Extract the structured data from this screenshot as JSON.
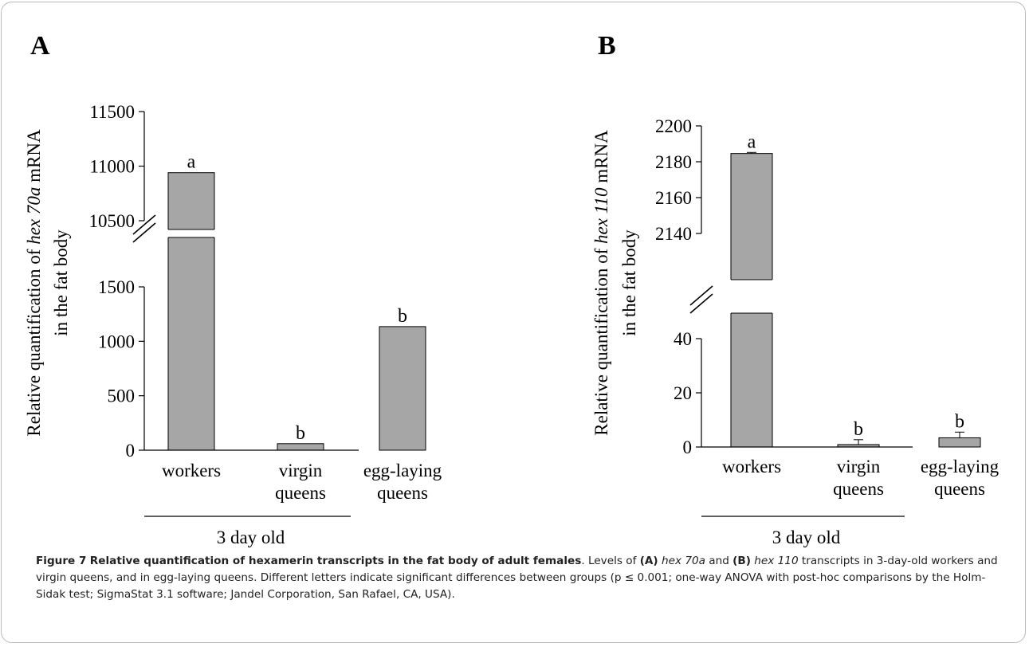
{
  "chart_data": [
    {
      "type": "bar",
      "panel_label": "A",
      "categories": [
        [
          "workers"
        ],
        [
          "virgin",
          "queens"
        ],
        [
          "egg-laying",
          "queens"
        ]
      ],
      "values": [
        10940,
        60,
        1135
      ],
      "errors": [
        0,
        0,
        0
      ],
      "letters": [
        "a",
        "b",
        "b"
      ],
      "group_label": "3 day old",
      "ylabel_line1": {
        "pre": "Relative quantification of ",
        "italic": "hex 70a",
        "post": " mRNA"
      },
      "ylabel_line2": "in the fat body",
      "axis_break": true,
      "lower_segment": {
        "ylim": [
          0,
          1500
        ],
        "ticks": [
          "0",
          "500",
          "1000",
          "1500"
        ]
      },
      "upper_segment": {
        "ylim": [
          10500,
          11500
        ],
        "ticks": [
          "10500",
          "11000",
          "11500"
        ]
      },
      "grid": false,
      "bar_color": "#a6a6a6"
    },
    {
      "type": "bar",
      "panel_label": "B",
      "categories": [
        [
          "workers"
        ],
        [
          "virgin",
          "queens"
        ],
        [
          "egg-laying",
          "queens"
        ]
      ],
      "values": [
        2184.6,
        0.9,
        3.4
      ],
      "errors": [
        0.6,
        1.8,
        2.1
      ],
      "letters": [
        "a",
        "b",
        "b"
      ],
      "group_label": "3 day old",
      "ylabel_line1": {
        "pre": "Relative quantification of ",
        "italic": "hex 110",
        "post": " mRNA"
      },
      "ylabel_line2": "in the fat body",
      "axis_break": true,
      "lower_segment": {
        "ylim": [
          0,
          40
        ],
        "ticks": [
          "0",
          "20",
          "40"
        ]
      },
      "upper_segment": {
        "ylim": [
          2140,
          2200
        ],
        "ticks": [
          "2140",
          "2160",
          "2180",
          "2200"
        ]
      },
      "grid": false,
      "bar_color": "#a6a6a6"
    }
  ],
  "caption": {
    "figure_label": "Figure 7",
    "title": "Relative quantification of hexamerin transcripts in the fat body of adult females",
    "p1": ". Levels of ",
    "a_label": "(A)",
    "a_gene": "hex 70a",
    "p2": " and ",
    "b_label": "(B)",
    "b_gene": "hex 110",
    "p3": " transcripts in 3-day-old workers and virgin queens, and in egg-laying queens. Different letters indicate significant differences between groups (p ≤ 0.001; one-way ANOVA with post-hoc comparisons by the Holm-Sidak test; SigmaStat 3.1 software; Jandel Corporation, San Rafael, CA, USA)."
  }
}
